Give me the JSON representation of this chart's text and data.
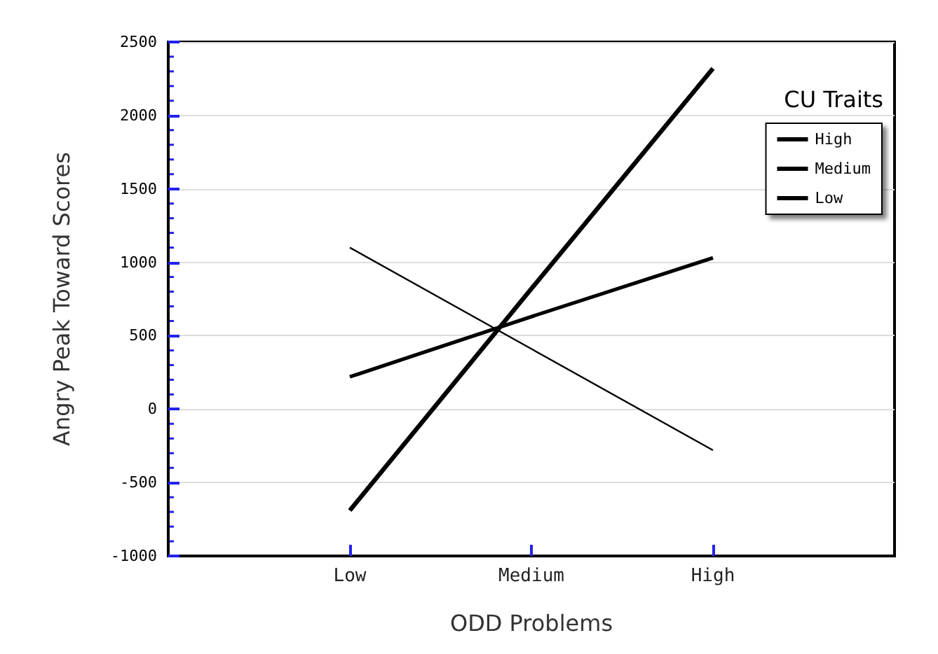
{
  "chart_data": {
    "type": "line",
    "xlabel": "ODD Problems",
    "ylabel": "Angry Peak Toward Scores",
    "legend_title": "CU Traits",
    "categories": [
      "Low",
      "Medium",
      "High"
    ],
    "series": [
      {
        "name": "High",
        "color": "#000000",
        "values": [
          -690,
          820,
          2320
        ]
      },
      {
        "name": "Medium",
        "color": "#000000",
        "values": [
          220,
          630,
          1030
        ]
      },
      {
        "name": "Low",
        "color": "#000000",
        "values": [
          1100,
          410,
          -280
        ]
      }
    ],
    "ylim": [
      -1000,
      2500
    ],
    "yticks": [
      -1000,
      -500,
      0,
      500,
      1000,
      1500,
      2000,
      2500
    ],
    "grid": "y",
    "legend": "top right",
    "marker": "none",
    "line_style": "solid"
  }
}
